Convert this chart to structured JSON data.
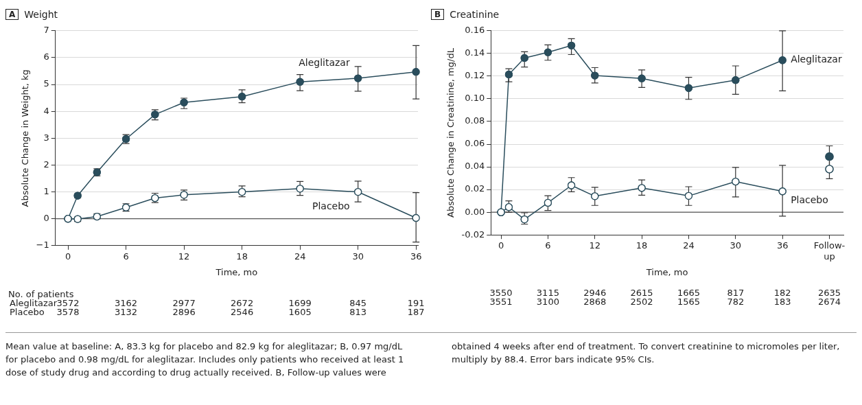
{
  "chart_data": [
    {
      "type": "line",
      "title": "A Weight",
      "xlabel": "Time, mo",
      "ylabel": "Absolute Change in Weight, kg",
      "xlim": [
        -1.3,
        36.2
      ],
      "ylim": [
        -1,
        7
      ],
      "xticks": [
        0,
        6,
        12,
        18,
        24,
        30,
        36
      ],
      "yticks": [
        {
          "value": -1,
          "label": "−1"
        },
        0,
        1,
        2,
        3,
        4,
        5,
        6,
        7
      ],
      "grid": "y",
      "legend": false,
      "marker": "circle",
      "line_style": "solid",
      "ref_lines": [
        {
          "axis": "y",
          "value": 0,
          "color": "#555555"
        }
      ],
      "x": [
        0,
        1,
        3,
        6,
        9,
        12,
        18,
        24,
        30,
        36
      ],
      "series": [
        {
          "name": "Aleglitazar",
          "color": "#2a4d5c",
          "values": [
            0,
            0.86,
            1.73,
            2.97,
            3.88,
            4.33,
            4.55,
            5.1,
            5.23,
            5.47
          ],
          "errors": [
            null,
            [
              0.78,
              0.93
            ],
            [
              1.6,
              1.86
            ],
            [
              2.8,
              3.13
            ],
            [
              3.68,
              4.06
            ],
            [
              4.1,
              4.49
            ],
            [
              4.32,
              4.8
            ],
            [
              4.77,
              5.37
            ],
            [
              4.75,
              5.67
            ],
            [
              4.46,
              6.45
            ]
          ]
        },
        {
          "name": "Placebo",
          "color": "#2a4d5c",
          "values": [
            0,
            -0.01,
            0.08,
            0.42,
            0.77,
            0.89,
            1.0,
            1.12,
            1.0,
            0.03
          ],
          "errors": [
            null,
            [
              -0.1,
              0.06
            ],
            [
              0,
              0.19
            ],
            [
              0.28,
              0.56
            ],
            [
              0.6,
              0.95
            ],
            [
              0.7,
              1.07
            ],
            [
              0.82,
              1.22
            ],
            [
              0.87,
              1.39
            ],
            [
              0.63,
              1.4
            ],
            [
              -0.87,
              0.97
            ]
          ]
        }
      ],
      "annotations": [
        "No. of patients",
        "Aleglitazar",
        "3572",
        "3162",
        "2977",
        "2672",
        "1699",
        "845",
        "191",
        "Placebo",
        "3578",
        "3132",
        "2896",
        "2546",
        "1605",
        "813",
        "187",
        "Mean value at baseline: A, 83.3 kg for placebo and 82.9 kg for aleglitazar; B, 0.97 mg/dL for placebo and 0.98 mg/dL for aleglitazar. Includes only patients who received at least 1 dose of study drug and according to drug actually received. B, Follow-up values were obtained 4 weeks after end of treatment. To convert creatinine to micromoles per liter, multiply by 88.4. Error bars indicate 95% CIs."
      ]
    },
    {
      "type": "line",
      "title": "B Creatinine",
      "xlabel": "Time, mo",
      "ylabel": "Absolute Change in Creatinine, mg/dL",
      "xlim": [
        -1.3,
        43.8
      ],
      "ylim": [
        -0.02,
        0.16
      ],
      "xticks": [
        0,
        6,
        12,
        18,
        24,
        30,
        36,
        {
          "value": 42,
          "label": "Follow-up"
        }
      ],
      "yticks": [
        {
          "value": -0.02,
          "label": "-0.02"
        },
        {
          "value": 0,
          "label": "0.00"
        },
        {
          "value": 0.02,
          "label": "0.02"
        },
        {
          "value": 0.04,
          "label": "0.04"
        },
        {
          "value": 0.06,
          "label": "0.06"
        },
        {
          "value": 0.08,
          "label": "0.08"
        },
        {
          "value": 0.1,
          "label": "0.10"
        },
        {
          "value": 0.12,
          "label": "0.12"
        },
        {
          "value": 0.14,
          "label": "0.14"
        },
        {
          "value": 0.16,
          "label": "0.16"
        }
      ],
      "grid": "y",
      "legend": false,
      "marker": "circle",
      "line_style": "solid",
      "ref_lines": [
        {
          "axis": "y",
          "value": 0,
          "color": "#555555"
        }
      ],
      "x": [
        0,
        1,
        3,
        6,
        9,
        12,
        18,
        24,
        30,
        36
      ],
      "series": [
        {
          "name": "Aleglitazar",
          "color": "#2a4d5c",
          "values": [
            0,
            0.1215,
            0.136,
            0.141,
            0.147,
            0.1205,
            0.118,
            0.1095,
            0.1165,
            0.134
          ],
          "errors": [
            null,
            [
              0.115,
              0.1265
            ],
            [
              0.128,
              0.1415
            ],
            [
              0.134,
              0.1475
            ],
            [
              0.139,
              0.153
            ],
            [
              0.114,
              0.1275
            ],
            [
              0.11,
              0.1255
            ],
            [
              0.0995,
              0.119
            ],
            [
              0.104,
              0.129
            ],
            [
              0.107,
              0.16
            ]
          ]
        },
        {
          "name": "Placebo",
          "color": "#2a4d5c",
          "values": [
            0,
            0.0045,
            -0.0063,
            0.0083,
            0.0237,
            0.0141,
            0.0214,
            0.0144,
            0.027,
            0.0184
          ],
          "errors": [
            null,
            [
              0,
              0.01
            ],
            [
              -0.0105,
              -0.0005
            ],
            [
              0.0015,
              0.0145
            ],
            [
              0.018,
              0.0305
            ],
            [
              0.006,
              0.022
            ],
            [
              0.015,
              0.0285
            ],
            [
              0.006,
              0.0225
            ],
            [
              0.0135,
              0.0395
            ],
            [
              -0.0035,
              0.0413
            ]
          ]
        },
        {
          "type": "scatter",
          "color": "#2a4d5c",
          "x": [
            42
          ],
          "values": [
            0.049
          ],
          "errors": [
            [
              0.04,
              0.0585
            ]
          ]
        },
        {
          "type": "scatter",
          "color": "#2a4d5c",
          "x": [
            42
          ],
          "values": [
            0.038
          ],
          "errors": [
            [
              0.0295,
              0.0475
            ]
          ]
        }
      ],
      "annotations": [
        "3550",
        "3115",
        "2946",
        "2615",
        "1665",
        "817",
        "182",
        "2635",
        "3551",
        "3100",
        "2868",
        "2502",
        "1565",
        "782",
        "183",
        "2674"
      ]
    }
  ]
}
